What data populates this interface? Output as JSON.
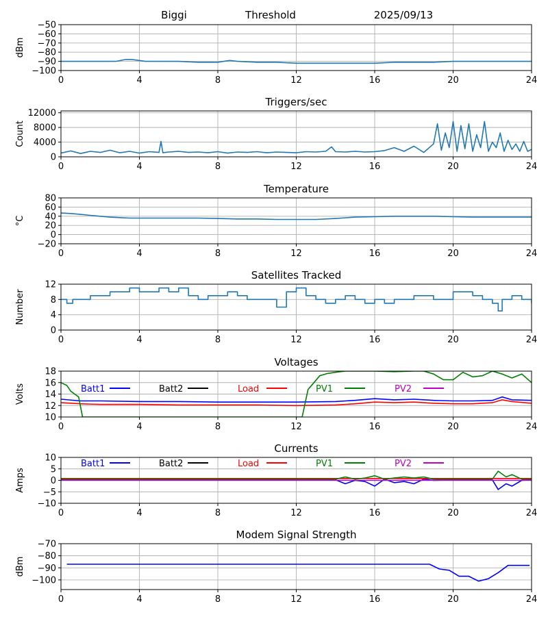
{
  "header": {
    "site": "Biggi",
    "subtitle": "Threshold",
    "date": "2025/09/13"
  },
  "colors": {
    "series_default": "#1f77b4",
    "batt1": "#0000ff",
    "batt2": "#000000",
    "load": "#ff0000",
    "pv1": "#008000",
    "pv2": "#bf00bf",
    "grid": "#b0b0b0"
  },
  "chart_data": [
    {
      "id": "threshold",
      "type": "line",
      "title": "",
      "xlabel": "",
      "ylabel": "dBm",
      "xlim": [
        0,
        24
      ],
      "ylim": [
        -100,
        -50
      ],
      "xticks": [
        0,
        4,
        8,
        12,
        16,
        20,
        24
      ],
      "yticks": [
        -100,
        -90,
        -80,
        -70,
        -60,
        -50
      ],
      "grid": true,
      "series": [
        {
          "color": "#1f77b4",
          "x": [
            0,
            1,
            2,
            2.8,
            3.3,
            3.6,
            4,
            4.3,
            5,
            6,
            7,
            8,
            8.3,
            8.6,
            9,
            10,
            11,
            12,
            13,
            14,
            15,
            16,
            17,
            18,
            19,
            20,
            21,
            22,
            23,
            24
          ],
          "y": [
            -90,
            -90,
            -90,
            -90,
            -88,
            -88,
            -89,
            -90,
            -90,
            -90,
            -91,
            -91,
            -90,
            -89,
            -90,
            -91,
            -91,
            -92,
            -92,
            -92,
            -92,
            -92,
            -91,
            -91,
            -91,
            -90,
            -90,
            -90,
            -90,
            -90
          ]
        }
      ]
    },
    {
      "id": "triggers",
      "type": "line",
      "title": "Triggers/sec",
      "xlabel": "",
      "ylabel": "Count",
      "xlim": [
        0,
        24
      ],
      "ylim": [
        0,
        12500
      ],
      "xticks": [
        0,
        4,
        8,
        12,
        16,
        20,
        24
      ],
      "yticks": [
        0,
        4000,
        8000,
        12000
      ],
      "grid": true,
      "series": [
        {
          "color": "#1f77b4",
          "x": [
            0,
            0.5,
            1,
            1.5,
            2,
            2.5,
            3,
            3.5,
            4,
            4.5,
            5,
            5.1,
            5.2,
            5.5,
            6,
            6.5,
            7,
            7.5,
            8,
            8.5,
            9,
            9.5,
            10,
            10.5,
            11,
            11.5,
            12,
            12.5,
            13,
            13.5,
            13.8,
            14,
            14.5,
            15,
            15.5,
            16,
            16.5,
            17,
            17.5,
            18,
            18.5,
            19,
            19.2,
            19.4,
            19.6,
            19.8,
            20,
            20.2,
            20.4,
            20.6,
            20.8,
            21,
            21.2,
            21.4,
            21.6,
            21.8,
            22,
            22.2,
            22.4,
            22.6,
            22.8,
            23,
            23.2,
            23.4,
            23.6,
            23.8,
            24
          ],
          "y": [
            1000,
            1600,
            900,
            1500,
            1200,
            1800,
            1100,
            1500,
            1000,
            1400,
            1200,
            4200,
            1100,
            1300,
            1500,
            1200,
            1300,
            1100,
            1400,
            1000,
            1300,
            1200,
            1400,
            1100,
            1300,
            1200,
            1100,
            1400,
            1300,
            1500,
            2700,
            1400,
            1300,
            1500,
            1300,
            1400,
            1700,
            2500,
            1500,
            2900,
            1200,
            3500,
            9000,
            1800,
            6500,
            2500,
            9600,
            1500,
            8500,
            2200,
            9000,
            1500,
            6000,
            2500,
            9600,
            1500,
            4000,
            2500,
            6500,
            1500,
            4500,
            2000,
            3500,
            1500,
            4200,
            1500,
            2000
          ]
        }
      ]
    },
    {
      "id": "temperature",
      "type": "line",
      "title": "Temperature",
      "xlabel": "",
      "ylabel": "°C",
      "xlim": [
        0,
        24
      ],
      "ylim": [
        -20,
        80
      ],
      "xticks": [
        0,
        4,
        8,
        12,
        16,
        20,
        24
      ],
      "yticks": [
        -20,
        0,
        20,
        40,
        60,
        80
      ],
      "grid": true,
      "series": [
        {
          "color": "#1f77b4",
          "x": [
            0,
            0.5,
            1,
            1.5,
            2,
            2.5,
            3,
            3.5,
            4,
            5,
            6,
            7,
            8,
            9,
            10,
            11,
            12,
            13,
            14,
            15,
            16,
            17,
            18,
            19,
            20,
            21,
            22,
            23,
            24
          ],
          "y": [
            47,
            46,
            44,
            42,
            40,
            38,
            37,
            36,
            36,
            36,
            36,
            36,
            35,
            34,
            34,
            33,
            33,
            33,
            35,
            38,
            39,
            40,
            40,
            40,
            39,
            38,
            38,
            38,
            38
          ]
        }
      ]
    },
    {
      "id": "satellites",
      "type": "line",
      "title": "Satellites Tracked",
      "xlabel": "",
      "ylabel": "Number",
      "xlim": [
        0,
        24
      ],
      "ylim": [
        0,
        12
      ],
      "xticks": [
        0,
        4,
        8,
        12,
        16,
        20,
        24
      ],
      "yticks": [
        0,
        4,
        8,
        12
      ],
      "grid": true,
      "step": true,
      "series": [
        {
          "color": "#1f77b4",
          "x": [
            0,
            0.3,
            0.6,
            1,
            1.5,
            2,
            2.5,
            3,
            3.5,
            4,
            4.5,
            5,
            5.5,
            6,
            6.5,
            7,
            7.5,
            8,
            8.5,
            9,
            9.5,
            10,
            10.5,
            11,
            11.5,
            12,
            12.5,
            13,
            13.5,
            14,
            14.5,
            15,
            15.5,
            16,
            16.5,
            17,
            17.5,
            18,
            18.5,
            19,
            19.5,
            20,
            20.5,
            21,
            21.5,
            22,
            22.3,
            22.5,
            23,
            23.5,
            24
          ],
          "y": [
            8,
            7,
            8,
            8,
            9,
            9,
            10,
            10,
            11,
            10,
            10,
            11,
            10,
            11,
            9,
            8,
            9,
            9,
            10,
            9,
            8,
            8,
            8,
            6,
            10,
            11,
            9,
            8,
            7,
            8,
            9,
            8,
            7,
            8,
            7,
            8,
            8,
            9,
            9,
            8,
            8,
            10,
            10,
            9,
            8,
            7,
            5,
            8,
            9,
            8,
            7
          ]
        }
      ]
    },
    {
      "id": "voltages",
      "type": "line",
      "title": "Voltages",
      "xlabel": "",
      "ylabel": "Volts",
      "xlim": [
        0,
        24
      ],
      "ylim": [
        10,
        18
      ],
      "xticks": [
        0,
        4,
        8,
        12,
        16,
        20,
        24
      ],
      "yticks": [
        10,
        12,
        14,
        16,
        18
      ],
      "grid": true,
      "legend": "inline-top",
      "series": [
        {
          "name": "Batt1",
          "color": "#0000ff",
          "x": [
            0,
            1,
            2,
            4,
            6,
            8,
            10,
            12,
            14,
            15,
            16,
            17,
            18,
            19,
            20,
            21,
            22,
            22.5,
            23,
            24
          ],
          "y": [
            13.1,
            12.8,
            12.8,
            12.7,
            12.7,
            12.6,
            12.6,
            12.6,
            12.7,
            12.9,
            13.2,
            13.0,
            13.1,
            12.9,
            12.8,
            12.8,
            12.9,
            13.5,
            13.0,
            12.9
          ]
        },
        {
          "name": "Batt2",
          "color": "#000000",
          "x": [],
          "y": []
        },
        {
          "name": "Load",
          "color": "#ff0000",
          "x": [
            0,
            1,
            2,
            4,
            6,
            8,
            10,
            12,
            14,
            15,
            16,
            17,
            18,
            19,
            20,
            21,
            22,
            22.5,
            23,
            24
          ],
          "y": [
            12.5,
            12.3,
            12.2,
            12.2,
            12.1,
            12.1,
            12.1,
            12.0,
            12.1,
            12.3,
            12.6,
            12.5,
            12.6,
            12.4,
            12.3,
            12.3,
            12.5,
            13.0,
            12.7,
            12.4
          ]
        },
        {
          "name": "PV1",
          "color": "#008000",
          "x": [
            0,
            0.3,
            0.5,
            0.7,
            0.9,
            1.1,
            12.3,
            12.6,
            12.9,
            13.2,
            13.6,
            14,
            14.5,
            15,
            16,
            17,
            18,
            18.5,
            19,
            19.5,
            20,
            20.5,
            21,
            21.5,
            22,
            22.5,
            23,
            23.5,
            24
          ],
          "y": [
            16,
            15.5,
            14.5,
            14,
            13.5,
            10,
            10,
            14.8,
            16,
            17.2,
            17.6,
            17.8,
            18,
            18,
            18,
            17.9,
            18,
            18,
            17.5,
            16.5,
            16.5,
            17.8,
            17,
            17.2,
            18,
            17.5,
            16.8,
            17.5,
            16
          ]
        },
        {
          "name": "PV2",
          "color": "#bf00bf",
          "x": [],
          "y": []
        }
      ]
    },
    {
      "id": "currents",
      "type": "line",
      "title": "Currents",
      "xlabel": "",
      "ylabel": "Amps",
      "xlim": [
        0,
        24
      ],
      "ylim": [
        -10,
        10
      ],
      "xticks": [
        0,
        4,
        8,
        12,
        16,
        20,
        24
      ],
      "yticks": [
        -10,
        -5,
        0,
        5,
        10
      ],
      "grid": true,
      "legend": "inline-top",
      "series": [
        {
          "name": "Batt1",
          "color": "#0000ff",
          "x": [
            0,
            2,
            4,
            6,
            8,
            10,
            12,
            14,
            14.5,
            15,
            15.5,
            16,
            16.5,
            17,
            17.5,
            18,
            18.5,
            19,
            20,
            21,
            22,
            22.3,
            22.7,
            23,
            23.5,
            24
          ],
          "y": [
            0.2,
            0.2,
            0.2,
            0.2,
            0.2,
            0.2,
            0.2,
            0.2,
            -1.5,
            0,
            -0.5,
            -2.5,
            0.5,
            -1,
            -0.5,
            -1.5,
            0.5,
            0,
            0.2,
            0.2,
            0.2,
            -4,
            -1.5,
            -2.5,
            0,
            0.2
          ]
        },
        {
          "name": "Batt2",
          "color": "#000000",
          "x": [],
          "y": []
        },
        {
          "name": "Load",
          "color": "#ff0000",
          "x": [
            0,
            4,
            8,
            12,
            16,
            20,
            24
          ],
          "y": [
            0.8,
            0.8,
            0.8,
            0.8,
            0.8,
            0.8,
            0.8
          ]
        },
        {
          "name": "PV1",
          "color": "#008000",
          "x": [
            0,
            2,
            4,
            6,
            8,
            10,
            12,
            14,
            14.5,
            15,
            15.5,
            16,
            16.5,
            17,
            17.5,
            18,
            18.5,
            19,
            20,
            21,
            22,
            22.3,
            22.7,
            23,
            23.5,
            24
          ],
          "y": [
            0.5,
            0.5,
            0.5,
            0.5,
            0.5,
            0.5,
            0.5,
            0.5,
            1.5,
            0.5,
            1,
            2,
            0.5,
            1,
            1.5,
            1,
            1.5,
            0.5,
            0.5,
            0.5,
            0.5,
            4,
            1.5,
            2.5,
            0.5,
            0.5
          ]
        },
        {
          "name": "PV2",
          "color": "#bf00bf",
          "x": [
            0,
            4,
            8,
            12,
            16,
            20,
            24
          ],
          "y": [
            0,
            0,
            0,
            0,
            0,
            0,
            0
          ]
        }
      ]
    },
    {
      "id": "modem",
      "type": "line",
      "title": "Modem Signal Strength",
      "xlabel": "",
      "ylabel": "dBm",
      "xlim": [
        0,
        24
      ],
      "ylim": [
        -108,
        -70
      ],
      "xticks": [
        0,
        4,
        8,
        12,
        16,
        20,
        24
      ],
      "yticks": [
        -100,
        -90,
        -80,
        -70
      ],
      "grid": true,
      "series": [
        {
          "color": "#0000ff",
          "x": [
            0.3,
            2,
            4,
            6,
            8,
            10,
            12,
            14,
            16,
            18,
            18.8,
            19.3,
            19.8,
            20.3,
            20.8,
            21.3,
            21.8,
            22.3,
            22.8,
            23.3,
            23.9
          ],
          "y": [
            -87,
            -87,
            -87,
            -87,
            -87,
            -87,
            -87,
            -87,
            -87,
            -87,
            -87,
            -91,
            -92,
            -97,
            -97,
            -101,
            -99,
            -94,
            -88,
            -88,
            -88
          ]
        }
      ]
    }
  ]
}
